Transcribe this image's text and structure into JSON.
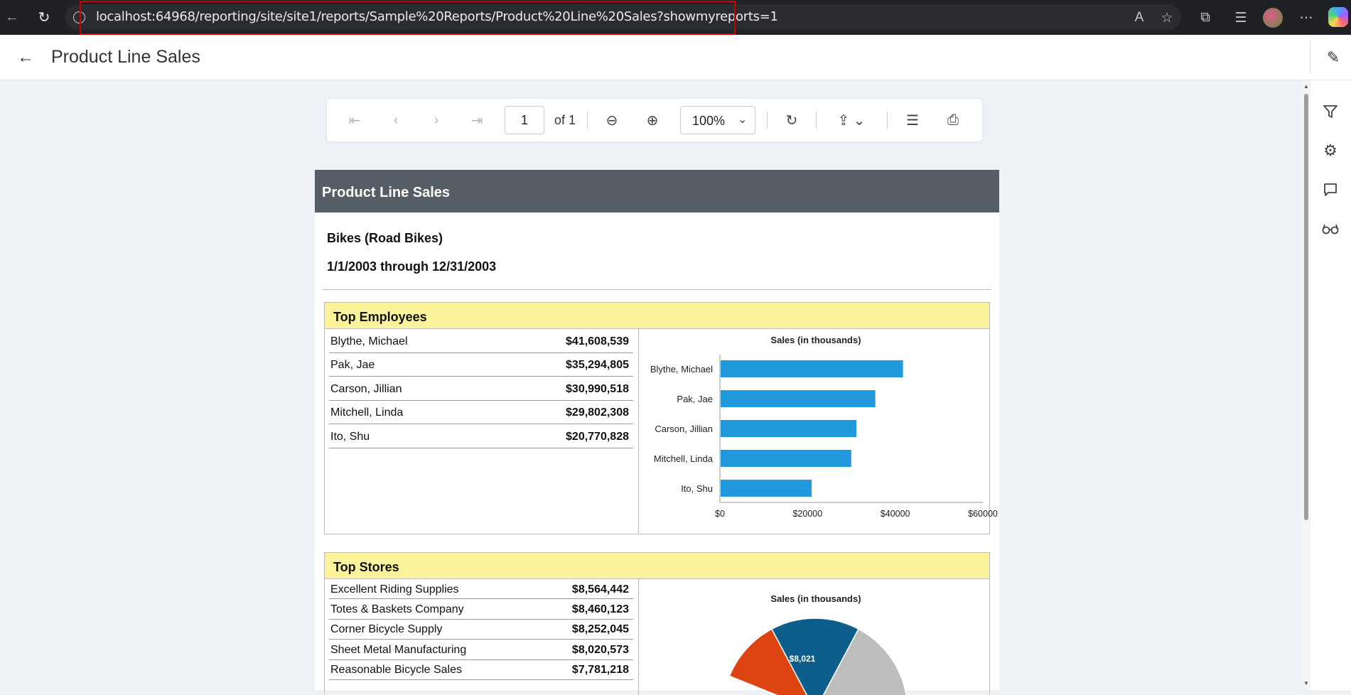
{
  "browser": {
    "url": "localhost:64968/reporting/site/site1/reports/Sample%20Reports/Product%20Line%20Sales?showmyreports=1"
  },
  "header": {
    "title": "Product Line Sales"
  },
  "toolbar": {
    "page_value": "1",
    "page_of": "of 1",
    "zoom": "100%"
  },
  "report": {
    "title": "Product Line Sales",
    "subtitle": "Bikes (Road Bikes)",
    "date_range": "1/1/2003 through 12/31/2003",
    "top_employees": {
      "title": "Top Employees",
      "rows": [
        {
          "name": "Blythe, Michael",
          "amount": "$41,608,539"
        },
        {
          "name": "Pak, Jae",
          "amount": "$35,294,805"
        },
        {
          "name": "Carson, Jillian",
          "amount": "$30,990,518"
        },
        {
          "name": "Mitchell, Linda",
          "amount": "$29,802,308"
        },
        {
          "name": "Ito, Shu",
          "amount": "$20,770,828"
        }
      ]
    },
    "top_stores": {
      "title": "Top Stores",
      "rows": [
        {
          "name": "Excellent Riding Supplies",
          "amount": "$8,564,442"
        },
        {
          "name": "Totes & Baskets Company",
          "amount": "$8,460,123"
        },
        {
          "name": "Corner Bicycle Supply",
          "amount": "$8,252,045"
        },
        {
          "name": "Sheet Metal Manufacturing",
          "amount": "$8,020,573"
        },
        {
          "name": "Reasonable Bicycle Sales",
          "amount": "$7,781,218"
        }
      ]
    }
  },
  "colors": {
    "bar": "#2299dd",
    "title_band": "#555d66",
    "section_head": "#fbf29c",
    "url_highlight": "#d00000",
    "pie": [
      "#0d5e8c",
      "#bdbdbd",
      "#dd4411"
    ]
  },
  "chart_data": [
    {
      "type": "bar",
      "orientation": "horizontal",
      "title": "Sales (in thousands)",
      "categories": [
        "Blythe, Michael",
        "Pak, Jae",
        "Carson, Jillian",
        "Mitchell, Linda",
        "Ito, Shu"
      ],
      "values": [
        41608.539,
        35294.805,
        30990.518,
        29802.308,
        20770.828
      ],
      "xlim": [
        0,
        60000
      ],
      "x_ticks": [
        "$0",
        "$20000",
        "$40000",
        "$60000"
      ],
      "x_tick_values": [
        0,
        20000,
        40000,
        60000
      ]
    },
    {
      "type": "pie",
      "title": "Sales (in thousands)",
      "visible_slice_labels": [
        "$8,021"
      ]
    }
  ]
}
